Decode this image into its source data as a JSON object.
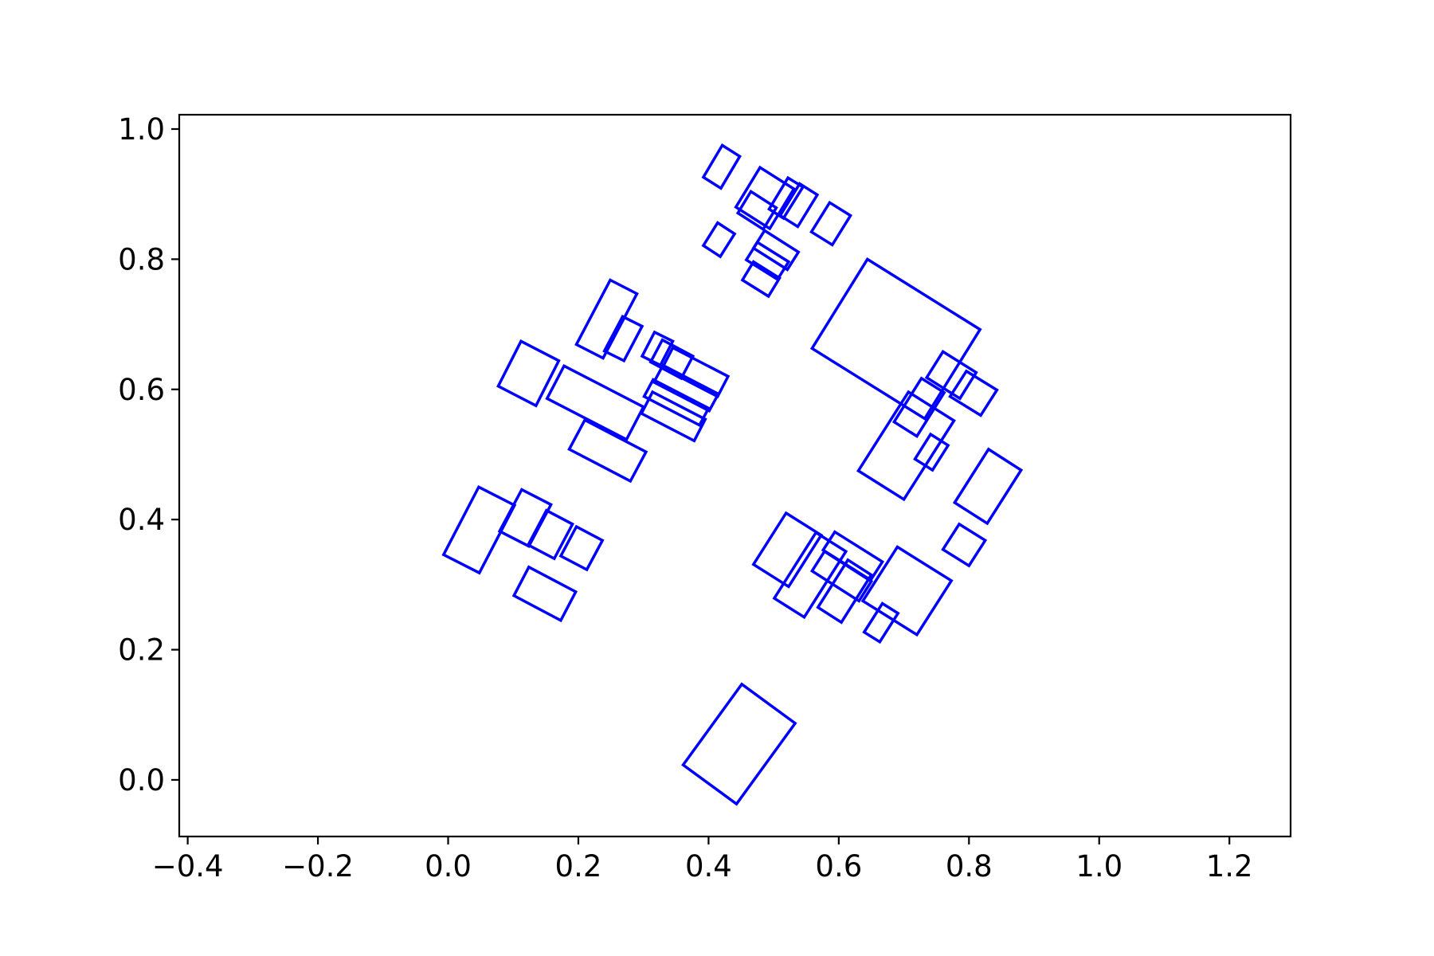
{
  "chart_data": {
    "type": "scatter",
    "mark_shape": "rotated-rectangle-outline",
    "title": "",
    "xlabel": "",
    "ylabel": "",
    "xlim": [
      -0.413,
      1.294
    ],
    "ylim": [
      -0.087,
      1.022
    ],
    "grid": false,
    "legend": "none",
    "colors": {
      "stroke": "#0000ff",
      "axes": "#000000",
      "background": "#ffffff"
    },
    "x_ticks": [
      {
        "value": -0.4,
        "label": "−0.4"
      },
      {
        "value": -0.2,
        "label": "−0.2"
      },
      {
        "value": 0.0,
        "label": "0.0"
      },
      {
        "value": 0.2,
        "label": "0.2"
      },
      {
        "value": 0.4,
        "label": "0.4"
      },
      {
        "value": 0.6,
        "label": "0.6"
      },
      {
        "value": 0.8,
        "label": "0.8"
      },
      {
        "value": 1.0,
        "label": "1.0"
      },
      {
        "value": 1.2,
        "label": "1.2"
      }
    ],
    "y_ticks": [
      {
        "value": 0.0,
        "label": "0.0"
      },
      {
        "value": 0.2,
        "label": "0.2"
      },
      {
        "value": 0.4,
        "label": "0.4"
      },
      {
        "value": 0.6,
        "label": "0.6"
      },
      {
        "value": 0.8,
        "label": "0.8"
      },
      {
        "value": 1.0,
        "label": "1.0"
      }
    ],
    "rectangles": [
      [
        [
          0.421,
          0.975
        ],
        [
          0.448,
          0.958
        ],
        [
          0.419,
          0.909
        ],
        [
          0.392,
          0.926
        ]
      ],
      [
        [
          0.479,
          0.941
        ],
        [
          0.531,
          0.908
        ],
        [
          0.494,
          0.847
        ],
        [
          0.442,
          0.88
        ]
      ],
      [
        [
          0.522,
          0.925
        ],
        [
          0.545,
          0.911
        ],
        [
          0.515,
          0.863
        ],
        [
          0.493,
          0.877
        ]
      ],
      [
        [
          0.54,
          0.916
        ],
        [
          0.567,
          0.899
        ],
        [
          0.537,
          0.85
        ],
        [
          0.51,
          0.867
        ]
      ],
      [
        [
          0.586,
          0.887
        ],
        [
          0.618,
          0.867
        ],
        [
          0.59,
          0.822
        ],
        [
          0.558,
          0.842
        ]
      ],
      [
        [
          0.465,
          0.904
        ],
        [
          0.504,
          0.879
        ],
        [
          0.484,
          0.846
        ],
        [
          0.445,
          0.871
        ]
      ],
      [
        [
          0.414,
          0.856
        ],
        [
          0.44,
          0.839
        ],
        [
          0.418,
          0.804
        ],
        [
          0.392,
          0.821
        ]
      ],
      [
        [
          0.486,
          0.844
        ],
        [
          0.538,
          0.811
        ],
        [
          0.521,
          0.784
        ],
        [
          0.469,
          0.817
        ]
      ],
      [
        [
          0.475,
          0.826
        ],
        [
          0.523,
          0.796
        ],
        [
          0.506,
          0.769
        ],
        [
          0.458,
          0.799
        ]
      ],
      [
        [
          0.469,
          0.796
        ],
        [
          0.509,
          0.771
        ],
        [
          0.492,
          0.743
        ],
        [
          0.452,
          0.768
        ]
      ],
      [
        [
          0.644,
          0.8
        ],
        [
          0.817,
          0.692
        ],
        [
          0.732,
          0.555
        ],
        [
          0.559,
          0.663
        ]
      ],
      [
        [
          0.76,
          0.658
        ],
        [
          0.811,
          0.626
        ],
        [
          0.786,
          0.586
        ],
        [
          0.735,
          0.618
        ]
      ],
      [
        [
          0.796,
          0.628
        ],
        [
          0.843,
          0.599
        ],
        [
          0.818,
          0.56
        ],
        [
          0.771,
          0.589
        ]
      ],
      [
        [
          0.727,
          0.617
        ],
        [
          0.762,
          0.595
        ],
        [
          0.72,
          0.528
        ],
        [
          0.685,
          0.55
        ]
      ],
      [
        [
          0.707,
          0.596
        ],
        [
          0.777,
          0.552
        ],
        [
          0.7,
          0.431
        ],
        [
          0.63,
          0.475
        ]
      ],
      [
        [
          0.741,
          0.531
        ],
        [
          0.768,
          0.514
        ],
        [
          0.744,
          0.476
        ],
        [
          0.717,
          0.493
        ]
      ],
      [
        [
          0.83,
          0.508
        ],
        [
          0.88,
          0.476
        ],
        [
          0.828,
          0.394
        ],
        [
          0.778,
          0.426
        ]
      ],
      [
        [
          0.785,
          0.393
        ],
        [
          0.825,
          0.368
        ],
        [
          0.8,
          0.329
        ],
        [
          0.76,
          0.354
        ]
      ],
      [
        [
          0.249,
          0.768
        ],
        [
          0.29,
          0.747
        ],
        [
          0.238,
          0.648
        ],
        [
          0.197,
          0.669
        ]
      ],
      [
        [
          0.268,
          0.712
        ],
        [
          0.298,
          0.697
        ],
        [
          0.27,
          0.644
        ],
        [
          0.24,
          0.659
        ]
      ],
      [
        [
          0.317,
          0.688
        ],
        [
          0.345,
          0.674
        ],
        [
          0.326,
          0.637
        ],
        [
          0.298,
          0.651
        ]
      ],
      [
        [
          0.329,
          0.676
        ],
        [
          0.376,
          0.651
        ],
        [
          0.358,
          0.617
        ],
        [
          0.311,
          0.642
        ]
      ],
      [
        [
          0.345,
          0.664
        ],
        [
          0.43,
          0.62
        ],
        [
          0.414,
          0.589
        ],
        [
          0.329,
          0.633
        ]
      ],
      [
        [
          0.33,
          0.637
        ],
        [
          0.415,
          0.593
        ],
        [
          0.401,
          0.567
        ],
        [
          0.316,
          0.611
        ]
      ],
      [
        [
          0.315,
          0.615
        ],
        [
          0.4,
          0.571
        ],
        [
          0.386,
          0.545
        ],
        [
          0.301,
          0.589
        ]
      ],
      [
        [
          0.314,
          0.596
        ],
        [
          0.395,
          0.554
        ],
        [
          0.378,
          0.521
        ],
        [
          0.297,
          0.563
        ]
      ],
      [
        [
          0.112,
          0.674
        ],
        [
          0.17,
          0.644
        ],
        [
          0.135,
          0.575
        ],
        [
          0.077,
          0.605
        ]
      ],
      [
        [
          0.178,
          0.636
        ],
        [
          0.3,
          0.573
        ],
        [
          0.274,
          0.523
        ],
        [
          0.152,
          0.586
        ]
      ],
      [
        [
          0.21,
          0.553
        ],
        [
          0.304,
          0.504
        ],
        [
          0.28,
          0.459
        ],
        [
          0.186,
          0.508
        ]
      ],
      [
        [
          0.047,
          0.45
        ],
        [
          0.102,
          0.422
        ],
        [
          0.048,
          0.318
        ],
        [
          -0.007,
          0.346
        ]
      ],
      [
        [
          0.113,
          0.446
        ],
        [
          0.158,
          0.423
        ],
        [
          0.124,
          0.359
        ],
        [
          0.079,
          0.382
        ]
      ],
      [
        [
          0.151,
          0.414
        ],
        [
          0.191,
          0.393
        ],
        [
          0.163,
          0.34
        ],
        [
          0.123,
          0.361
        ]
      ],
      [
        [
          0.197,
          0.389
        ],
        [
          0.237,
          0.368
        ],
        [
          0.213,
          0.323
        ],
        [
          0.173,
          0.344
        ]
      ],
      [
        [
          0.124,
          0.327
        ],
        [
          0.196,
          0.289
        ],
        [
          0.173,
          0.245
        ],
        [
          0.101,
          0.283
        ]
      ],
      [
        [
          0.519,
          0.41
        ],
        [
          0.573,
          0.376
        ],
        [
          0.523,
          0.297
        ],
        [
          0.469,
          0.331
        ]
      ],
      [
        [
          0.565,
          0.38
        ],
        [
          0.611,
          0.351
        ],
        [
          0.547,
          0.25
        ],
        [
          0.501,
          0.279
        ]
      ],
      [
        [
          0.594,
          0.381
        ],
        [
          0.667,
          0.335
        ],
        [
          0.649,
          0.307
        ],
        [
          0.576,
          0.353
        ]
      ],
      [
        [
          0.578,
          0.351
        ],
        [
          0.65,
          0.305
        ],
        [
          0.631,
          0.275
        ],
        [
          0.559,
          0.321
        ]
      ],
      [
        [
          0.614,
          0.338
        ],
        [
          0.65,
          0.315
        ],
        [
          0.604,
          0.242
        ],
        [
          0.568,
          0.265
        ]
      ],
      [
        [
          0.69,
          0.358
        ],
        [
          0.773,
          0.306
        ],
        [
          0.72,
          0.223
        ],
        [
          0.637,
          0.275
        ]
      ],
      [
        [
          0.667,
          0.271
        ],
        [
          0.691,
          0.256
        ],
        [
          0.663,
          0.212
        ],
        [
          0.639,
          0.227
        ]
      ],
      [
        [
          0.451,
          0.147
        ],
        [
          0.533,
          0.087
        ],
        [
          0.443,
          -0.037
        ],
        [
          0.361,
          0.023
        ]
      ]
    ]
  }
}
